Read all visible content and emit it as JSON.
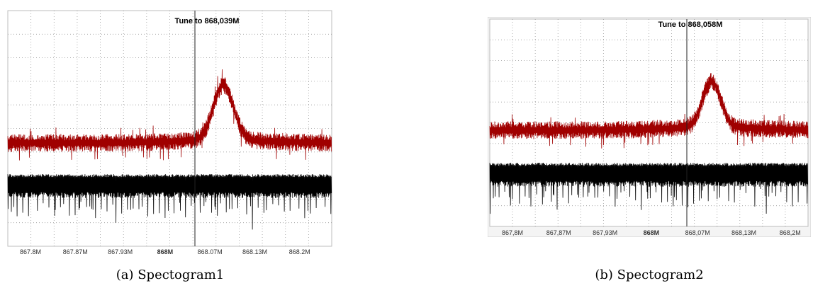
{
  "chart_data": [
    {
      "type": "line",
      "title": "",
      "annotation": "Tune to 868,039M",
      "caption": "(a) Spectogram1",
      "x_ticks": [
        "867.8M",
        "867.87M",
        "867.93M",
        "868M",
        "868.07M",
        "868.13M",
        "868.2M"
      ],
      "bold_tick": "868M",
      "grid": true,
      "series": [
        {
          "color": "#a00000",
          "shape": "noise-floor-with-peak",
          "peak_x_tick_position": 4.3
        },
        {
          "color": "#000000",
          "shape": "periodic-comb"
        }
      ]
    },
    {
      "type": "line",
      "title": "",
      "annotation": "Tune to 868,058M",
      "caption": "(b) Spectogram2",
      "x_ticks": [
        "867,8M",
        "867,87M",
        "867,93M",
        "868M",
        "868,07M",
        "868,13M",
        "868,2M"
      ],
      "bold_tick": "868M",
      "grid": true,
      "series": [
        {
          "color": "#a00000",
          "shape": "noise-floor-with-peak",
          "peak_x_tick_position": 4.3
        },
        {
          "color": "#000000",
          "shape": "periodic-comb"
        }
      ]
    }
  ]
}
